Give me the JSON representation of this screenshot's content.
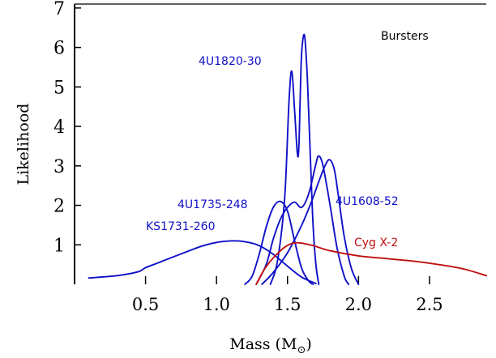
{
  "chart_data": {
    "type": "line",
    "title": "",
    "annotation": "Bursters",
    "xlabel": "Mass (M",
    "xlabel_sub": "⊙",
    "xlabel_close": ")",
    "ylabel": "Likelihood",
    "xlim": [
      0,
      2.9
    ],
    "ylim": [
      0,
      7.1
    ],
    "xticks": [
      0.5,
      1.0,
      1.5,
      2.0,
      2.5
    ],
    "xtick_labels": [
      "0.5",
      "1.0",
      "1.5",
      "2.0",
      "2.5"
    ],
    "yticks": [
      1,
      2,
      3,
      4,
      5,
      6,
      7
    ],
    "ytick_labels": [
      "1",
      "2",
      "3",
      "4",
      "5",
      "6",
      "7"
    ],
    "grid": false,
    "legend": "none",
    "colors": {
      "bursters": "#1010c8",
      "cygx2": "#c01010"
    },
    "series": [
      {
        "name": "KS1731-260",
        "color": "#1010c8",
        "points": [
          [
            0.1,
            0.16
          ],
          [
            0.3,
            0.22
          ],
          [
            0.45,
            0.32
          ],
          [
            0.5,
            0.42
          ],
          [
            0.6,
            0.56
          ],
          [
            0.7,
            0.7
          ],
          [
            0.8,
            0.84
          ],
          [
            0.9,
            0.97
          ],
          [
            1.0,
            1.06
          ],
          [
            1.1,
            1.1
          ],
          [
            1.2,
            1.08
          ],
          [
            1.3,
            0.98
          ],
          [
            1.4,
            0.76
          ],
          [
            1.5,
            0.46
          ],
          [
            1.6,
            0.18
          ],
          [
            1.7,
            0.02
          ]
        ]
      },
      {
        "name": "4U1735-248",
        "color": "#1010c8",
        "points": [
          [
            1.2,
            0.0
          ],
          [
            1.25,
            0.2
          ],
          [
            1.3,
            0.75
          ],
          [
            1.35,
            1.45
          ],
          [
            1.4,
            1.95
          ],
          [
            1.45,
            2.1
          ],
          [
            1.5,
            1.85
          ],
          [
            1.55,
            1.1
          ],
          [
            1.6,
            0.4
          ],
          [
            1.65,
            0.08
          ],
          [
            1.68,
            0.0
          ]
        ]
      },
      {
        "name": "4U1820-30",
        "color": "#1010c8",
        "points": [
          [
            1.38,
            0.0
          ],
          [
            1.43,
            0.6
          ],
          [
            1.48,
            2.2
          ],
          [
            1.51,
            4.6
          ],
          [
            1.53,
            5.4
          ],
          [
            1.55,
            4.4
          ],
          [
            1.57,
            3.3
          ],
          [
            1.58,
            3.5
          ],
          [
            1.59,
            4.8
          ],
          [
            1.6,
            5.9
          ],
          [
            1.62,
            6.3
          ],
          [
            1.64,
            5.2
          ],
          [
            1.66,
            3.3
          ],
          [
            1.68,
            1.5
          ],
          [
            1.7,
            0.5
          ],
          [
            1.72,
            0.0
          ]
        ]
      },
      {
        "name": "4U1608-52",
        "color": "#1010c8",
        "points": [
          [
            1.28,
            0.0
          ],
          [
            1.35,
            0.5
          ],
          [
            1.4,
            1.15
          ],
          [
            1.45,
            1.65
          ],
          [
            1.5,
            1.95
          ],
          [
            1.55,
            2.08
          ],
          [
            1.6,
            1.95
          ],
          [
            1.65,
            2.3
          ],
          [
            1.7,
            3.05
          ],
          [
            1.72,
            3.25
          ],
          [
            1.75,
            3.0
          ],
          [
            1.8,
            2.0
          ],
          [
            1.85,
            0.9
          ],
          [
            1.9,
            0.2
          ],
          [
            1.93,
            0.0
          ]
        ]
      },
      {
        "name": "",
        "color": "#1010c8",
        "points": [
          [
            1.32,
            0.0
          ],
          [
            1.4,
            0.3
          ],
          [
            1.5,
            0.8
          ],
          [
            1.6,
            1.5
          ],
          [
            1.67,
            2.1
          ],
          [
            1.72,
            2.6
          ],
          [
            1.77,
            3.05
          ],
          [
            1.8,
            3.15
          ],
          [
            1.83,
            2.9
          ],
          [
            1.86,
            2.2
          ],
          [
            1.9,
            1.2
          ],
          [
            1.95,
            0.4
          ],
          [
            2.0,
            0.0
          ]
        ]
      },
      {
        "name": "Cyg X-2",
        "color": "#c01010",
        "points": [
          [
            1.28,
            0.0
          ],
          [
            1.35,
            0.45
          ],
          [
            1.45,
            0.85
          ],
          [
            1.52,
            1.02
          ],
          [
            1.58,
            1.05
          ],
          [
            1.68,
            0.98
          ],
          [
            1.8,
            0.85
          ],
          [
            2.0,
            0.72
          ],
          [
            2.2,
            0.65
          ],
          [
            2.4,
            0.58
          ],
          [
            2.6,
            0.48
          ],
          [
            2.75,
            0.38
          ],
          [
            2.9,
            0.22
          ]
        ]
      }
    ],
    "labels": {
      "s4u1820": "4U1820-30",
      "s4u1735": "4U1735-248",
      "sks1731": "KS1731-260",
      "s4u1608": "4U1608-52",
      "scygx2": "Cyg X-2"
    }
  }
}
